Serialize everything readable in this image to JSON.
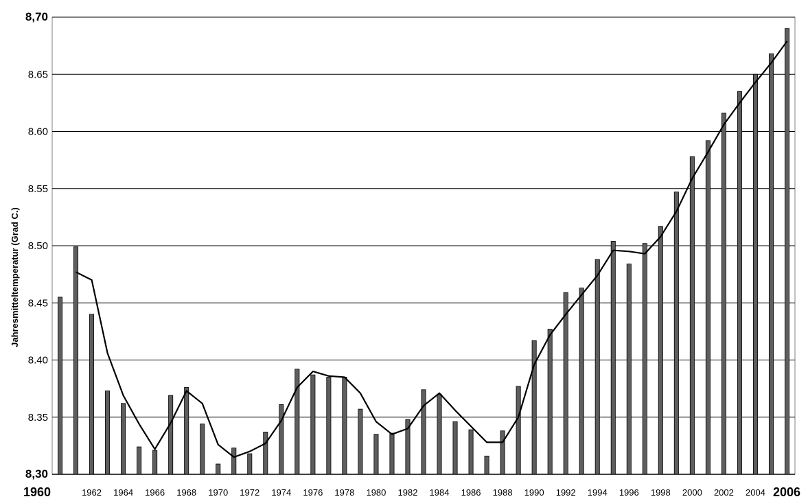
{
  "chart_data": {
    "type": "bar",
    "title": "",
    "xlabel": "",
    "ylabel": "Jahresmitteltemperatur (Grad C.)",
    "ylim": [
      8.3,
      8.7
    ],
    "grid": true,
    "ytick_labels": [
      "8,30",
      "8.35",
      "8.40",
      "8.45",
      "8.50",
      "8.55",
      "8.60",
      "8.65",
      "8,70"
    ],
    "xtick_labels": [
      "1960",
      "1962",
      "1964",
      "1966",
      "1968",
      "1970",
      "1972",
      "1974",
      "1976",
      "1978",
      "1980",
      "1982",
      "1984",
      "1986",
      "1988",
      "1990",
      "1992",
      "1994",
      "1996",
      "1998",
      "2000",
      "2002",
      "2004",
      "2006"
    ],
    "categories": [
      1960,
      1961,
      1962,
      1963,
      1964,
      1965,
      1966,
      1967,
      1968,
      1969,
      1970,
      1971,
      1972,
      1973,
      1974,
      1975,
      1976,
      1977,
      1978,
      1979,
      1980,
      1981,
      1982,
      1983,
      1984,
      1985,
      1986,
      1987,
      1988,
      1989,
      1990,
      1991,
      1992,
      1993,
      1994,
      1995,
      1996,
      1997,
      1998,
      1999,
      2000,
      2001,
      2002,
      2003,
      2004,
      2005,
      2006
    ],
    "values": [
      8.455,
      8.499,
      8.44,
      8.373,
      8.362,
      8.324,
      8.321,
      8.369,
      8.376,
      8.344,
      8.309,
      8.323,
      8.318,
      8.337,
      8.361,
      8.392,
      8.387,
      8.385,
      8.385,
      8.357,
      8.335,
      8.336,
      8.348,
      8.374,
      8.37,
      8.346,
      8.339,
      8.316,
      8.338,
      8.377,
      8.417,
      8.427,
      8.459,
      8.463,
      8.488,
      8.504,
      8.484,
      8.502,
      8.517,
      8.547,
      8.578,
      8.592,
      8.616,
      8.635,
      8.65,
      8.668,
      8.69
    ],
    "trend_line": {
      "x": [
        1961,
        1962,
        1963,
        1964,
        1965,
        1966,
        1967,
        1968,
        1969,
        1970,
        1971,
        1972,
        1973,
        1974,
        1975,
        1976,
        1977,
        1978,
        1979,
        1980,
        1981,
        1982,
        1983,
        1984,
        1985,
        1986,
        1987,
        1988,
        1989,
        1990,
        1991,
        1992,
        1993,
        1994,
        1995,
        1996,
        1997,
        1998,
        1999,
        2000,
        2001,
        2002,
        2003,
        2004,
        2005,
        2006
      ],
      "values": [
        8.477,
        8.47,
        8.406,
        8.369,
        8.344,
        8.322,
        8.345,
        8.373,
        8.362,
        8.326,
        8.315,
        8.32,
        8.327,
        8.347,
        8.376,
        8.39,
        8.386,
        8.385,
        8.371,
        8.346,
        8.335,
        8.34,
        8.36,
        8.371,
        8.356,
        8.342,
        8.328,
        8.328,
        8.35,
        8.396,
        8.422,
        8.44,
        8.457,
        8.474,
        8.496,
        8.495,
        8.493,
        8.508,
        8.53,
        8.559,
        8.582,
        8.606,
        8.625,
        8.643,
        8.66,
        8.679
      ]
    },
    "colors": {
      "bar_fill": "#5e5e5e",
      "bar_edge": "#000000",
      "line": "#000000",
      "grid": "#000000",
      "background": "#ffffff"
    }
  }
}
